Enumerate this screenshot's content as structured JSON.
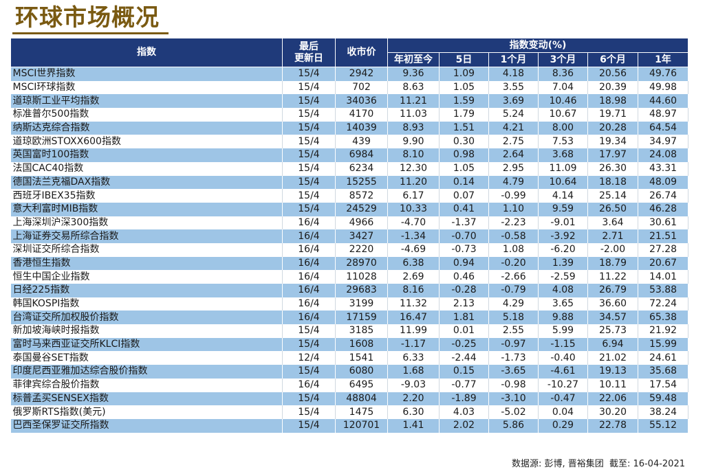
{
  "title": "环球市场概况",
  "headers": {
    "index": "指数",
    "last_update_line1": "最后",
    "last_update_line2": "更新日",
    "close": "收市价",
    "change_group": "指数变动(%)",
    "periods": [
      "年初至今",
      "5日",
      "1个月",
      "3个月",
      "6个月",
      "1年"
    ]
  },
  "rows": [
    {
      "name": "MSCI世界指数",
      "date": "15/4",
      "close": "2942",
      "ytd": "9.36",
      "d5": "1.09",
      "m1": "4.18",
      "m3": "8.36",
      "m6": "20.56",
      "y1": "49.76"
    },
    {
      "name": "MSCI环球指数",
      "date": "15/4",
      "close": "702",
      "ytd": "8.63",
      "d5": "1.05",
      "m1": "3.55",
      "m3": "7.04",
      "m6": "20.39",
      "y1": "49.98"
    },
    {
      "name": "道琼斯工业平均指数",
      "date": "15/4",
      "close": "34036",
      "ytd": "11.21",
      "d5": "1.59",
      "m1": "3.69",
      "m3": "10.46",
      "m6": "18.98",
      "y1": "44.60"
    },
    {
      "name": "标准普尔500指数",
      "date": "15/4",
      "close": "4170",
      "ytd": "11.03",
      "d5": "1.79",
      "m1": "5.24",
      "m3": "10.67",
      "m6": "19.71",
      "y1": "48.97"
    },
    {
      "name": "纳斯达克综合指数",
      "date": "15/4",
      "close": "14039",
      "ytd": "8.93",
      "d5": "1.51",
      "m1": "4.21",
      "m3": "8.00",
      "m6": "20.28",
      "y1": "64.54"
    },
    {
      "name": "道琼欧洲STOXX600指数",
      "date": "15/4",
      "close": "439",
      "ytd": "9.90",
      "d5": "0.30",
      "m1": "2.75",
      "m3": "7.53",
      "m6": "19.34",
      "y1": "34.97"
    },
    {
      "name": "英国富时100指数",
      "date": "15/4",
      "close": "6984",
      "ytd": "8.10",
      "d5": "0.98",
      "m1": "2.64",
      "m3": "3.68",
      "m6": "17.97",
      "y1": "24.08"
    },
    {
      "name": "法国CAC40指数",
      "date": "15/4",
      "close": "6234",
      "ytd": "12.30",
      "d5": "1.05",
      "m1": "2.95",
      "m3": "11.09",
      "m6": "26.30",
      "y1": "43.31"
    },
    {
      "name": "德国法兰克福DAX指数",
      "date": "15/4",
      "close": "15255",
      "ytd": "11.20",
      "d5": "0.14",
      "m1": "4.79",
      "m3": "10.64",
      "m6": "18.18",
      "y1": "48.09"
    },
    {
      "name": "西班牙IBEX35指数",
      "date": "15/4",
      "close": "8572",
      "ytd": "6.17",
      "d5": "0.07",
      "m1": "-0.99",
      "m3": "4.14",
      "m6": "25.14",
      "y1": "26.74"
    },
    {
      "name": "意大利富时MIB指数",
      "date": "15/4",
      "close": "24529",
      "ytd": "10.33",
      "d5": "0.41",
      "m1": "1.10",
      "m3": "9.59",
      "m6": "26.50",
      "y1": "46.28"
    },
    {
      "name": "上海深圳沪深300指数",
      "date": "16/4",
      "close": "4966",
      "ytd": "-4.70",
      "d5": "-1.37",
      "m1": "-2.23",
      "m3": "-9.01",
      "m6": "3.64",
      "y1": "30.61"
    },
    {
      "name": "上海证券交易所综合指数",
      "date": "16/4",
      "close": "3427",
      "ytd": "-1.34",
      "d5": "-0.70",
      "m1": "-0.58",
      "m3": "-3.92",
      "m6": "2.71",
      "y1": "21.51"
    },
    {
      "name": "深圳证交所综合指数",
      "date": "16/4",
      "close": "2220",
      "ytd": "-4.69",
      "d5": "-0.73",
      "m1": "1.08",
      "m3": "-6.20",
      "m6": "-2.00",
      "y1": "27.28"
    },
    {
      "name": "香港恒生指数",
      "date": "16/4",
      "close": "28970",
      "ytd": "6.38",
      "d5": "0.94",
      "m1": "-0.20",
      "m3": "1.39",
      "m6": "18.79",
      "y1": "20.67"
    },
    {
      "name": "恒生中国企业指数",
      "date": "16/4",
      "close": "11028",
      "ytd": "2.69",
      "d5": "0.46",
      "m1": "-2.66",
      "m3": "-2.59",
      "m6": "11.22",
      "y1": "14.01"
    },
    {
      "name": "日经225指数",
      "date": "16/4",
      "close": "29683",
      "ytd": "8.16",
      "d5": "-0.28",
      "m1": "-0.79",
      "m3": "4.08",
      "m6": "26.79",
      "y1": "53.88"
    },
    {
      "name": "韩国KOSPI指数",
      "date": "16/4",
      "close": "3199",
      "ytd": "11.32",
      "d5": "2.13",
      "m1": "4.29",
      "m3": "3.65",
      "m6": "36.60",
      "y1": "72.24"
    },
    {
      "name": "台湾证交所加权股价指数",
      "date": "16/4",
      "close": "17159",
      "ytd": "16.47",
      "d5": "1.81",
      "m1": "5.18",
      "m3": "9.88",
      "m6": "34.57",
      "y1": "65.38"
    },
    {
      "name": "新加坡海峡时报指数",
      "date": "15/4",
      "close": "3185",
      "ytd": "11.99",
      "d5": "0.01",
      "m1": "2.55",
      "m3": "5.99",
      "m6": "25.73",
      "y1": "21.92"
    },
    {
      "name": "富时马来西亚证交所KLCI指数",
      "date": "15/4",
      "close": "1608",
      "ytd": "-1.17",
      "d5": "-0.25",
      "m1": "-0.97",
      "m3": "-1.15",
      "m6": "6.94",
      "y1": "15.99"
    },
    {
      "name": "泰国曼谷SET指数",
      "date": "12/4",
      "close": "1541",
      "ytd": "6.33",
      "d5": "-2.44",
      "m1": "-1.73",
      "m3": "-0.40",
      "m6": "21.02",
      "y1": "24.61"
    },
    {
      "name": "印度尼西亚雅加达综合股价指数",
      "date": "15/4",
      "close": "6080",
      "ytd": "1.68",
      "d5": "0.15",
      "m1": "-3.65",
      "m3": "-4.61",
      "m6": "19.13",
      "y1": "35.68"
    },
    {
      "name": "菲律宾综合股价指数",
      "date": "16/4",
      "close": "6495",
      "ytd": "-9.03",
      "d5": "-0.77",
      "m1": "-0.98",
      "m3": "-10.27",
      "m6": "10.11",
      "y1": "17.54"
    },
    {
      "name": "标普孟买SENSEX指数",
      "date": "15/4",
      "close": "48804",
      "ytd": "2.20",
      "d5": "-1.89",
      "m1": "-3.10",
      "m3": "-0.47",
      "m6": "22.06",
      "y1": "59.48"
    },
    {
      "name": "俄罗斯RTS指数(美元)",
      "date": "15/4",
      "close": "1475",
      "ytd": "6.30",
      "d5": "4.03",
      "m1": "-5.02",
      "m3": "0.04",
      "m6": "30.20",
      "y1": "38.24"
    },
    {
      "name": "巴西圣保罗证交所指数",
      "date": "15/4",
      "close": "120701",
      "ytd": "1.41",
      "d5": "2.02",
      "m1": "5.86",
      "m3": "0.29",
      "m6": "22.78",
      "y1": "55.12"
    }
  ],
  "footer": {
    "source": "数据源: 彭博, 晋裕集团",
    "asof": "截至: 16-04-2021"
  }
}
